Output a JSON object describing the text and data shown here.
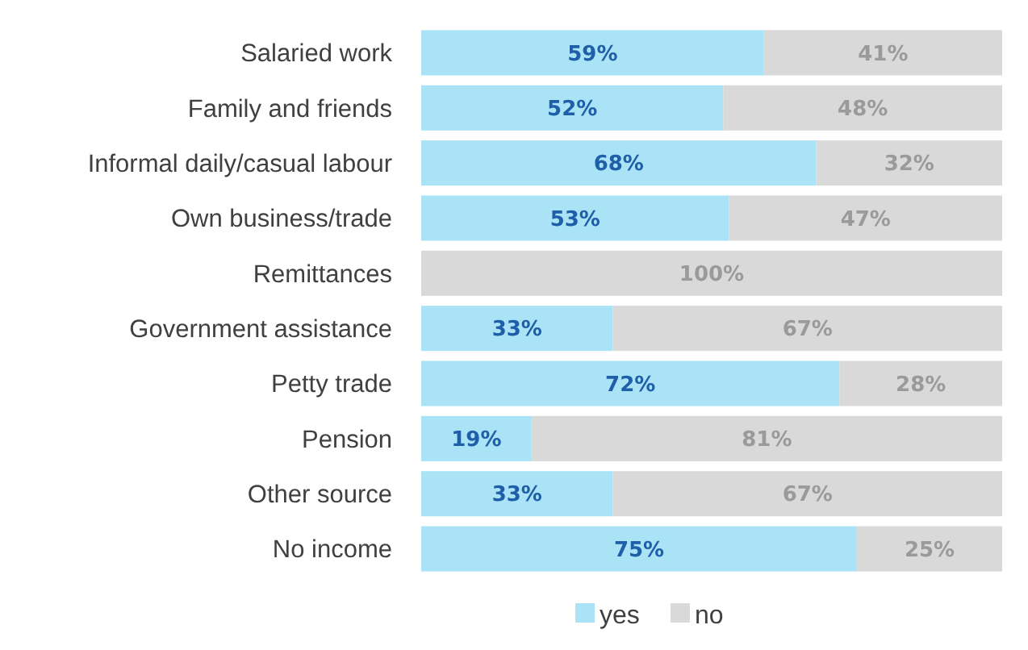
{
  "chart_data": {
    "type": "bar",
    "orientation": "horizontal",
    "stacked": true,
    "legend": "bottom",
    "categories": [
      "Salaried work",
      "Family and friends",
      "Informal daily/casual labour",
      "Own business/trade",
      "Remittances",
      "Government assistance",
      "Petty trade",
      "Pension",
      "Other source",
      "No income"
    ],
    "series": [
      {
        "name": "yes",
        "color": "#a9e3f5",
        "values": [
          59,
          52,
          68,
          53,
          0,
          33,
          72,
          19,
          33,
          75
        ],
        "value_labels": [
          "59%",
          "52%",
          "68%",
          "53%",
          null,
          "33%",
          "72%",
          "19%",
          "33%",
          "75%"
        ]
      },
      {
        "name": "no",
        "color": "#d9d9d9",
        "values": [
          41,
          48,
          32,
          47,
          100,
          67,
          28,
          81,
          67,
          25
        ],
        "value_labels": [
          "41%",
          "48%",
          "32%",
          "47%",
          "100%",
          "67%",
          "28%",
          "81%",
          "67%",
          "25%"
        ]
      }
    ]
  }
}
